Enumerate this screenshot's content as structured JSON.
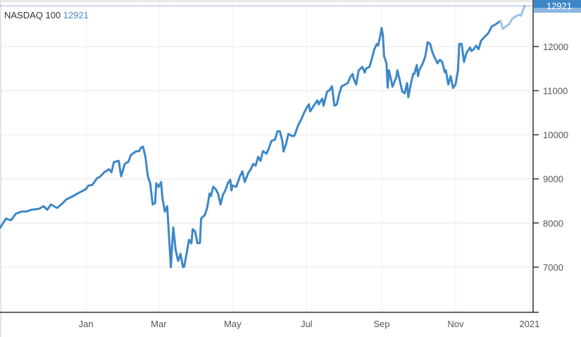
{
  "chart_data": {
    "type": "line",
    "title": "NASDAQ 100",
    "last_value": "12921",
    "x_unit": "days since 2020-01-01",
    "xlim": [
      -71,
      369
    ],
    "ylim": [
      5975,
      13055
    ],
    "grid": true,
    "x_ticks": [
      {
        "label": "Jan",
        "day": 0
      },
      {
        "label": "Mar",
        "day": 60
      },
      {
        "label": "May",
        "day": 121
      },
      {
        "label": "Jul",
        "day": 182
      },
      {
        "label": "Sep",
        "day": 244
      },
      {
        "label": "Nov",
        "day": 305
      },
      {
        "label": "2021",
        "day": 366
      }
    ],
    "y_ticks": [
      {
        "label": "7000",
        "value": 7000
      },
      {
        "label": "8000",
        "value": 8000
      },
      {
        "label": "9000",
        "value": 9000
      },
      {
        "label": "10000",
        "value": 10000
      },
      {
        "label": "11000",
        "value": 11000
      },
      {
        "label": "12000",
        "value": 12000
      }
    ],
    "colors": {
      "line": "#3d87c8",
      "line_recent": "#9cc3e6",
      "badge": "#3d87c8",
      "last_line": "#5b5bd6"
    },
    "series": [
      {
        "name": "NASDAQ 100",
        "points": [
          [
            -71,
            7890
          ],
          [
            -66,
            8100
          ],
          [
            -62,
            8060
          ],
          [
            -58,
            8210
          ],
          [
            -53,
            8260
          ],
          [
            -49,
            8260
          ],
          [
            -45,
            8300
          ],
          [
            -39,
            8320
          ],
          [
            -35,
            8380
          ],
          [
            -32,
            8300
          ],
          [
            -29,
            8420
          ],
          [
            -24,
            8340
          ],
          [
            -20,
            8430
          ],
          [
            -16,
            8540
          ],
          [
            -12,
            8590
          ],
          [
            -7,
            8670
          ],
          [
            -2,
            8740
          ],
          [
            0,
            8770
          ],
          [
            2,
            8850
          ],
          [
            5,
            8860
          ],
          [
            9,
            9010
          ],
          [
            12,
            9060
          ],
          [
            15,
            9150
          ],
          [
            19,
            9220
          ],
          [
            21,
            9150
          ],
          [
            23,
            9380
          ],
          [
            27,
            9410
          ],
          [
            29,
            9060
          ],
          [
            32,
            9340
          ],
          [
            35,
            9390
          ],
          [
            37,
            9540
          ],
          [
            41,
            9620
          ],
          [
            44,
            9630
          ],
          [
            45,
            9700
          ],
          [
            47,
            9730
          ],
          [
            49,
            9500
          ],
          [
            51,
            9060
          ],
          [
            53,
            8900
          ],
          [
            55,
            8420
          ],
          [
            57,
            8450
          ],
          [
            58,
            8900
          ],
          [
            60,
            8820
          ],
          [
            62,
            8930
          ],
          [
            63,
            8580
          ],
          [
            65,
            8260
          ],
          [
            67,
            8380
          ],
          [
            69,
            7460
          ],
          [
            70,
            7000
          ],
          [
            72,
            7900
          ],
          [
            74,
            7380
          ],
          [
            76,
            7140
          ],
          [
            78,
            7300
          ],
          [
            80,
            7000
          ],
          [
            81,
            7010
          ],
          [
            83,
            7300
          ],
          [
            85,
            7620
          ],
          [
            87,
            7540
          ],
          [
            88,
            7860
          ],
          [
            90,
            7810
          ],
          [
            92,
            7540
          ],
          [
            94,
            7550
          ],
          [
            95,
            8100
          ],
          [
            98,
            8180
          ],
          [
            100,
            8340
          ],
          [
            102,
            8670
          ],
          [
            103,
            8610
          ],
          [
            105,
            8820
          ],
          [
            107,
            8770
          ],
          [
            109,
            8660
          ],
          [
            111,
            8420
          ],
          [
            113,
            8640
          ],
          [
            115,
            8740
          ],
          [
            117,
            8900
          ],
          [
            119,
            8980
          ],
          [
            120,
            8740
          ],
          [
            121,
            8850
          ],
          [
            124,
            8820
          ],
          [
            127,
            9060
          ],
          [
            129,
            9170
          ],
          [
            131,
            8930
          ],
          [
            134,
            9140
          ],
          [
            136,
            9220
          ],
          [
            138,
            9340
          ],
          [
            140,
            9300
          ],
          [
            142,
            9500
          ],
          [
            144,
            9410
          ],
          [
            146,
            9630
          ],
          [
            149,
            9570
          ],
          [
            151,
            9700
          ],
          [
            153,
            9860
          ],
          [
            156,
            9890
          ],
          [
            158,
            10080
          ],
          [
            160,
            10080
          ],
          [
            162,
            9860
          ],
          [
            163,
            9620
          ],
          [
            165,
            9780
          ],
          [
            167,
            10020
          ],
          [
            170,
            9970
          ],
          [
            172,
            9980
          ],
          [
            173,
            10050
          ],
          [
            175,
            10210
          ],
          [
            178,
            10370
          ],
          [
            180,
            10500
          ],
          [
            182,
            10610
          ],
          [
            184,
            10690
          ],
          [
            185,
            10530
          ],
          [
            188,
            10660
          ],
          [
            191,
            10780
          ],
          [
            192,
            10690
          ],
          [
            195,
            10820
          ],
          [
            196,
            10660
          ],
          [
            199,
            10980
          ],
          [
            201,
            11010
          ],
          [
            203,
            11100
          ],
          [
            205,
            10660
          ],
          [
            207,
            10690
          ],
          [
            209,
            10930
          ],
          [
            211,
            11100
          ],
          [
            214,
            11140
          ],
          [
            216,
            11170
          ],
          [
            218,
            11300
          ],
          [
            220,
            11380
          ],
          [
            221,
            11260
          ],
          [
            223,
            11140
          ],
          [
            225,
            11460
          ],
          [
            228,
            11540
          ],
          [
            230,
            11410
          ],
          [
            231,
            11500
          ],
          [
            234,
            11540
          ],
          [
            236,
            11740
          ],
          [
            238,
            11940
          ],
          [
            240,
            12060
          ],
          [
            241,
            12020
          ],
          [
            243,
            12260
          ],
          [
            244,
            12420
          ],
          [
            245,
            12260
          ],
          [
            246,
            11780
          ],
          [
            248,
            11620
          ],
          [
            249,
            11070
          ],
          [
            250,
            11460
          ],
          [
            252,
            11220
          ],
          [
            253,
            11090
          ],
          [
            256,
            11300
          ],
          [
            257,
            11460
          ],
          [
            259,
            11220
          ],
          [
            261,
            10980
          ],
          [
            263,
            10940
          ],
          [
            265,
            11170
          ],
          [
            266,
            10850
          ],
          [
            268,
            11140
          ],
          [
            270,
            11380
          ],
          [
            271,
            11380
          ],
          [
            273,
            11580
          ],
          [
            274,
            11330
          ],
          [
            275,
            11460
          ],
          [
            278,
            11620
          ],
          [
            280,
            11780
          ],
          [
            282,
            12100
          ],
          [
            284,
            12060
          ],
          [
            286,
            11860
          ],
          [
            288,
            11740
          ],
          [
            290,
            11620
          ],
          [
            292,
            11700
          ],
          [
            294,
            11650
          ],
          [
            296,
            11420
          ],
          [
            297,
            11460
          ],
          [
            299,
            11140
          ],
          [
            301,
            11330
          ],
          [
            303,
            11060
          ],
          [
            305,
            11140
          ],
          [
            307,
            11460
          ],
          [
            308,
            12060
          ],
          [
            310,
            12060
          ],
          [
            312,
            11650
          ],
          [
            314,
            11860
          ],
          [
            317,
            11980
          ],
          [
            318,
            11900
          ],
          [
            320,
            11940
          ],
          [
            322,
            12020
          ],
          [
            324,
            11940
          ],
          [
            326,
            12130
          ],
          [
            329,
            12220
          ],
          [
            332,
            12300
          ],
          [
            335,
            12460
          ],
          [
            338,
            12500
          ],
          [
            340,
            12540
          ],
          [
            342,
            12580
          ]
        ]
      },
      {
        "name": "NASDAQ 100 (recent)",
        "points": [
          [
            342,
            12580
          ],
          [
            344,
            12400
          ],
          [
            346,
            12450
          ],
          [
            349,
            12500
          ],
          [
            352,
            12640
          ],
          [
            354,
            12670
          ],
          [
            357,
            12720
          ],
          [
            359,
            12700
          ],
          [
            362,
            12921
          ]
        ]
      }
    ]
  }
}
